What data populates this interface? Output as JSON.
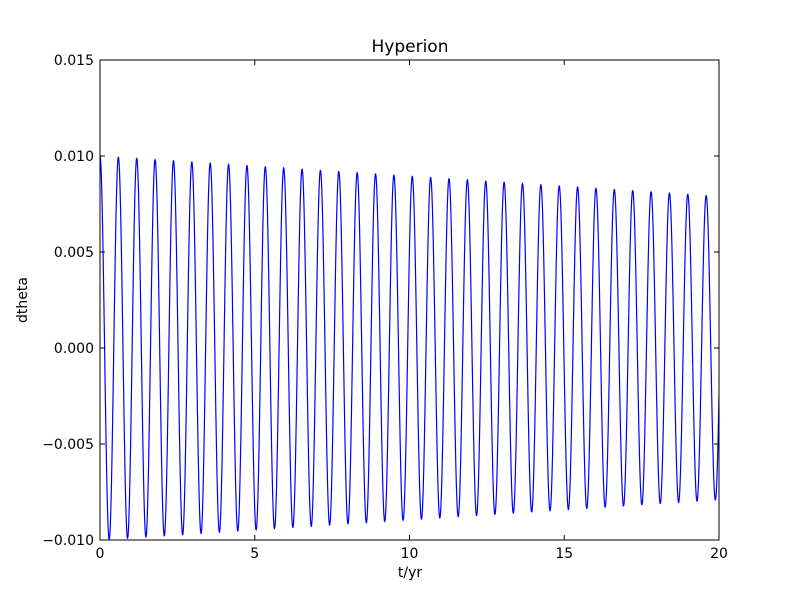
{
  "chart_data": {
    "type": "line",
    "title": "Hyperion",
    "xlabel": "t/yr",
    "ylabel": "dtheta",
    "xlim": [
      0,
      20
    ],
    "ylim": [
      -0.01,
      0.015
    ],
    "x_ticks": [
      "0",
      "5",
      "10",
      "15",
      "20"
    ],
    "y_ticks": [
      "−0.010",
      "−0.005",
      "0.000",
      "0.005",
      "0.010",
      "0.015"
    ],
    "grid": false,
    "legend": "none",
    "series_color": "#0000ff",
    "series": [
      {
        "cycle_period_yr": 0.5935,
        "amplitude_start": 0.01,
        "amplitude_end": 0.0079,
        "initial_value": 0.01
      }
    ]
  }
}
